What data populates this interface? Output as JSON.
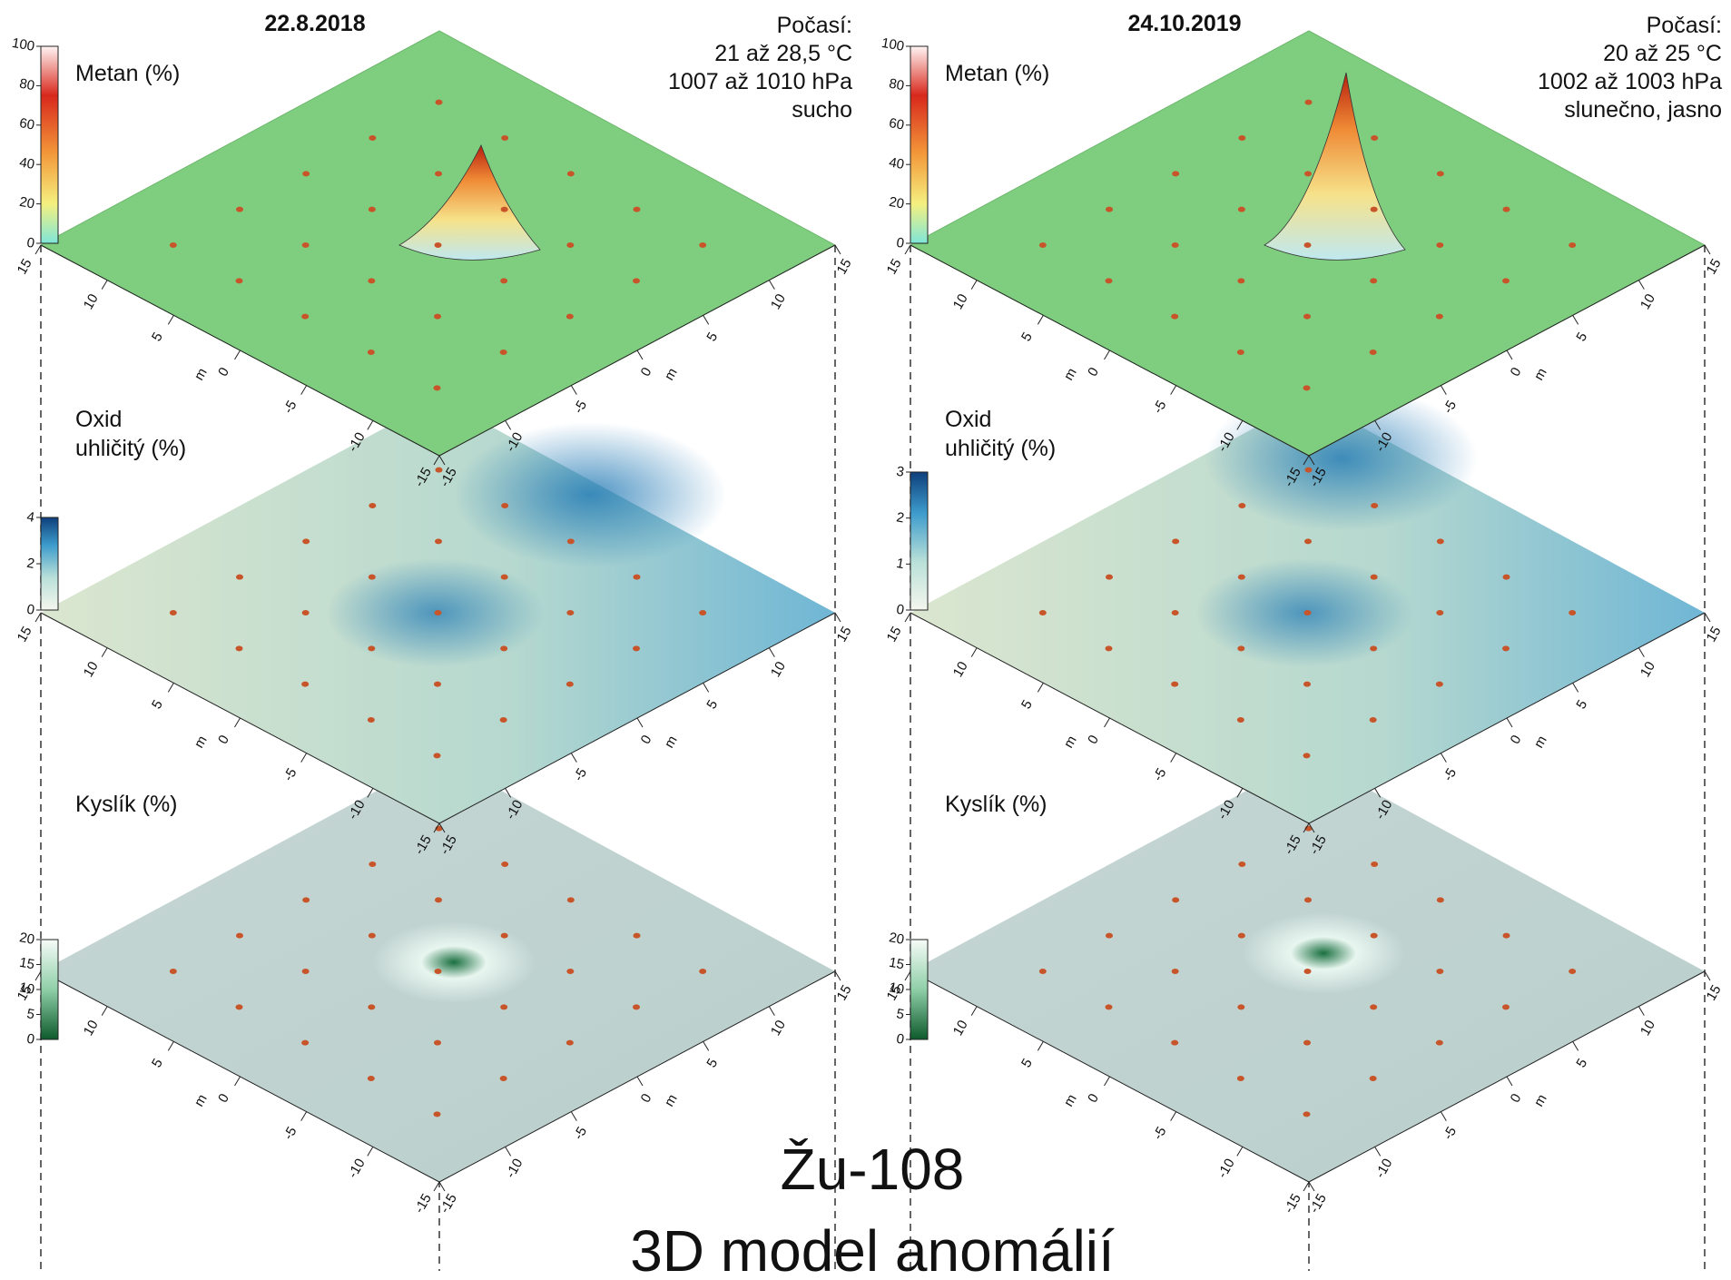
{
  "panels": [
    {
      "title": "22.8.2018",
      "weather": [
        "Počasí:",
        "21 až 28,5 °C",
        "1007 až 1010 hPa",
        "sucho"
      ],
      "layers": [
        {
          "label": [
            "Metan (%)"
          ],
          "colorbar_ticks": [
            0,
            20,
            40,
            60,
            80,
            100
          ]
        },
        {
          "label": [
            "Oxid",
            "uhličitý (%)"
          ],
          "colorbar_ticks": [
            0,
            2,
            4
          ]
        },
        {
          "label": [
            "Kyslík (%)"
          ],
          "colorbar_ticks": [
            0,
            5,
            10,
            15,
            20
          ]
        }
      ]
    },
    {
      "title": "24.10.2019",
      "weather": [
        "Počasí:",
        "20 až 25 °C",
        "1002 až 1003 hPa",
        "slunečno, jasno"
      ],
      "layers": [
        {
          "label": [
            "Metan (%)"
          ],
          "colorbar_ticks": [
            0,
            20,
            40,
            60,
            80,
            100
          ]
        },
        {
          "label": [
            "Oxid",
            "uhličitý (%)"
          ],
          "colorbar_ticks": [
            0,
            1,
            2,
            3
          ]
        },
        {
          "label": [
            "Kyslík (%)"
          ],
          "colorbar_ticks": [
            0,
            5,
            10,
            15,
            20
          ]
        }
      ]
    }
  ],
  "axis_ticks": [
    15,
    10,
    5,
    0,
    -5,
    -10,
    -15
  ],
  "axis_unit": "m",
  "caption": [
    "Žu-108",
    "3D model anomálií"
  ]
}
